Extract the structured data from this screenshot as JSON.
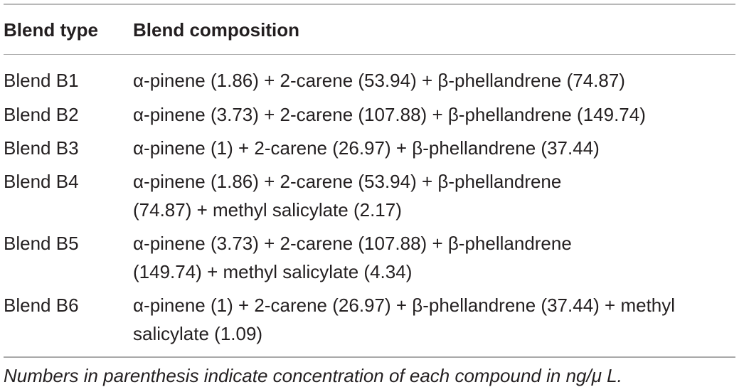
{
  "table": {
    "headers": [
      "Blend type",
      "Blend composition"
    ],
    "rows": [
      {
        "type": "Blend B1",
        "lines": [
          "α-pinene (1.86) + 2-carene (53.94) + β-phellandrene (74.87)"
        ]
      },
      {
        "type": "Blend B2",
        "lines": [
          "α-pinene (3.73) + 2-carene (107.88) + β-phellandrene (149.74)"
        ]
      },
      {
        "type": "Blend B3",
        "lines": [
          "α-pinene (1) + 2-carene (26.97) + β-phellandrene (37.44)"
        ]
      },
      {
        "type": "Blend B4",
        "lines": [
          "α-pinene (1.86) + 2-carene (53.94) + β-phellandrene",
          "(74.87) + methyl salicylate (2.17)"
        ]
      },
      {
        "type": "Blend B5",
        "lines": [
          "α-pinene (3.73) + 2-carene (107.88) + β-phellandrene",
          "(149.74) + methyl salicylate (4.34)"
        ]
      },
      {
        "type": "Blend B6",
        "lines": [
          "α-pinene (1) + 2-carene (26.97) + β-phellandrene (37.44) + methyl",
          "salicylate (1.09)"
        ]
      }
    ]
  },
  "footnote": "Numbers in parenthesis indicate concentration of each compound in ng/μ L."
}
